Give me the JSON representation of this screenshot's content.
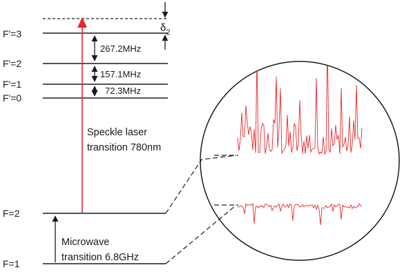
{
  "levels": {
    "excited": [
      {
        "label": "F'=3"
      },
      {
        "label": "F'=2"
      },
      {
        "label": "F'=1"
      },
      {
        "label": "F'=0"
      }
    ],
    "ground": [
      {
        "label": "F=2"
      },
      {
        "label": "F=1"
      }
    ]
  },
  "splittings": [
    {
      "label": "267.2MHz"
    },
    {
      "label": "157.1MHz"
    },
    {
      "label": "72.3MHz"
    }
  ],
  "detuning": {
    "symbol": "δ",
    "subscript": "2"
  },
  "speckle": {
    "line1": "Speckle laser",
    "line2": "transition 780nm",
    "arrow_color": "#e8262b"
  },
  "microwave": {
    "line1": "Microwave",
    "line2": "transition 6.8GHz"
  },
  "signal_color": "#e8262b"
}
